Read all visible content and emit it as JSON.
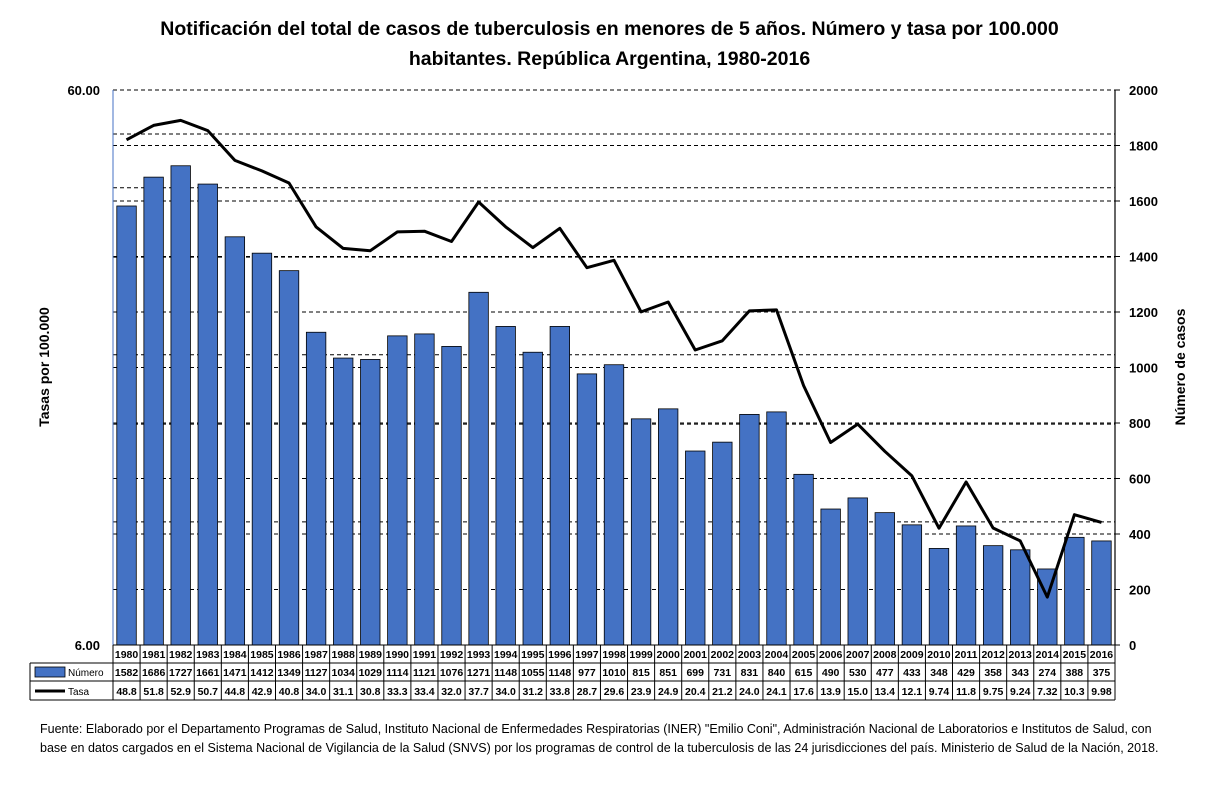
{
  "chart_data": {
    "type": "bar",
    "title_line1": "Notificación del total de casos de tuberculosis en menores de 5 años. Número y tasa por 100.000",
    "title_line2": "habitantes. República Argentina, 1980-2016",
    "ylabel_left": "Tasas por 100.000",
    "ylabel_right": "Número de casos",
    "y_left_scale": "log",
    "y_left_ticks": [
      "60.00",
      "6.00"
    ],
    "y_left_range": [
      6,
      60
    ],
    "y_right_ticks": [
      "2000",
      "1800",
      "1600",
      "1400",
      "1200",
      "1000",
      "800",
      "600",
      "400",
      "200",
      "0"
    ],
    "y_right_range": [
      0,
      2000
    ],
    "categories": [
      "1980",
      "1981",
      "1982",
      "1983",
      "1984",
      "1985",
      "1986",
      "1987",
      "1988",
      "1989",
      "1990",
      "1991",
      "1992",
      "1993",
      "1994",
      "1995",
      "1996",
      "1997",
      "1998",
      "1999",
      "2000",
      "2001",
      "2002",
      "2003",
      "2004",
      "2005",
      "2006",
      "2007",
      "2008",
      "2009",
      "2010",
      "2011",
      "2012",
      "2013",
      "2014",
      "2015",
      "2016"
    ],
    "series": [
      {
        "name": "Número",
        "type": "bar",
        "axis": "right",
        "color": "#4472C4",
        "values": [
          1582,
          1686,
          1727,
          1661,
          1471,
          1412,
          1349,
          1127,
          1034,
          1029,
          1114,
          1121,
          1076,
          1271,
          1148,
          1055,
          1148,
          977,
          1010,
          815,
          851,
          699,
          731,
          831,
          840,
          615,
          490,
          530,
          477,
          433,
          348,
          429,
          358,
          343,
          274,
          388,
          375
        ]
      },
      {
        "name": "Tasa",
        "type": "line",
        "axis": "left",
        "color": "#000000",
        "values": [
          48.8,
          51.8,
          52.9,
          50.7,
          44.8,
          42.9,
          40.8,
          34.0,
          31.1,
          30.8,
          33.3,
          33.4,
          32.0,
          37.7,
          34.0,
          31.2,
          33.8,
          28.7,
          29.6,
          23.9,
          24.9,
          20.4,
          21.2,
          24.0,
          24.1,
          17.6,
          13.9,
          15.0,
          13.4,
          12.1,
          9.74,
          11.8,
          9.75,
          9.24,
          7.32,
          10.3,
          9.98
        ],
        "labels": [
          "48.8",
          "51.8",
          "52.9",
          "50.7",
          "44.8",
          "42.9",
          "40.8",
          "34.0",
          "31.1",
          "30.8",
          "33.3",
          "33.4",
          "32.0",
          "37.7",
          "34.0",
          "31.2",
          "33.8",
          "28.7",
          "29.6",
          "23.9",
          "24.9",
          "20.4",
          "21.2",
          "24.0",
          "24.1",
          "17.6",
          "13.9",
          "15.0",
          "13.4",
          "12.1",
          "9.74",
          "11.8",
          "9.75",
          "9.24",
          "7.32",
          "10.3",
          "9.98"
        ]
      }
    ],
    "grid": true,
    "legend": "data-table"
  },
  "source_note": "Fuente: Elaborado por el Departamento Programas de Salud, Instituto Nacional de Enfermedades Respiratorias (INER) \"Emilio Coni\", Administración Nacional de Laboratorios e Institutos de Salud, con base en datos cargados en el Sistema Nacional de Vigilancia de la Salud (SNVS) por los programas de control de la tuberculosis de las 24 jurisdicciones del país. Ministerio de Salud de la Nación, 2018."
}
